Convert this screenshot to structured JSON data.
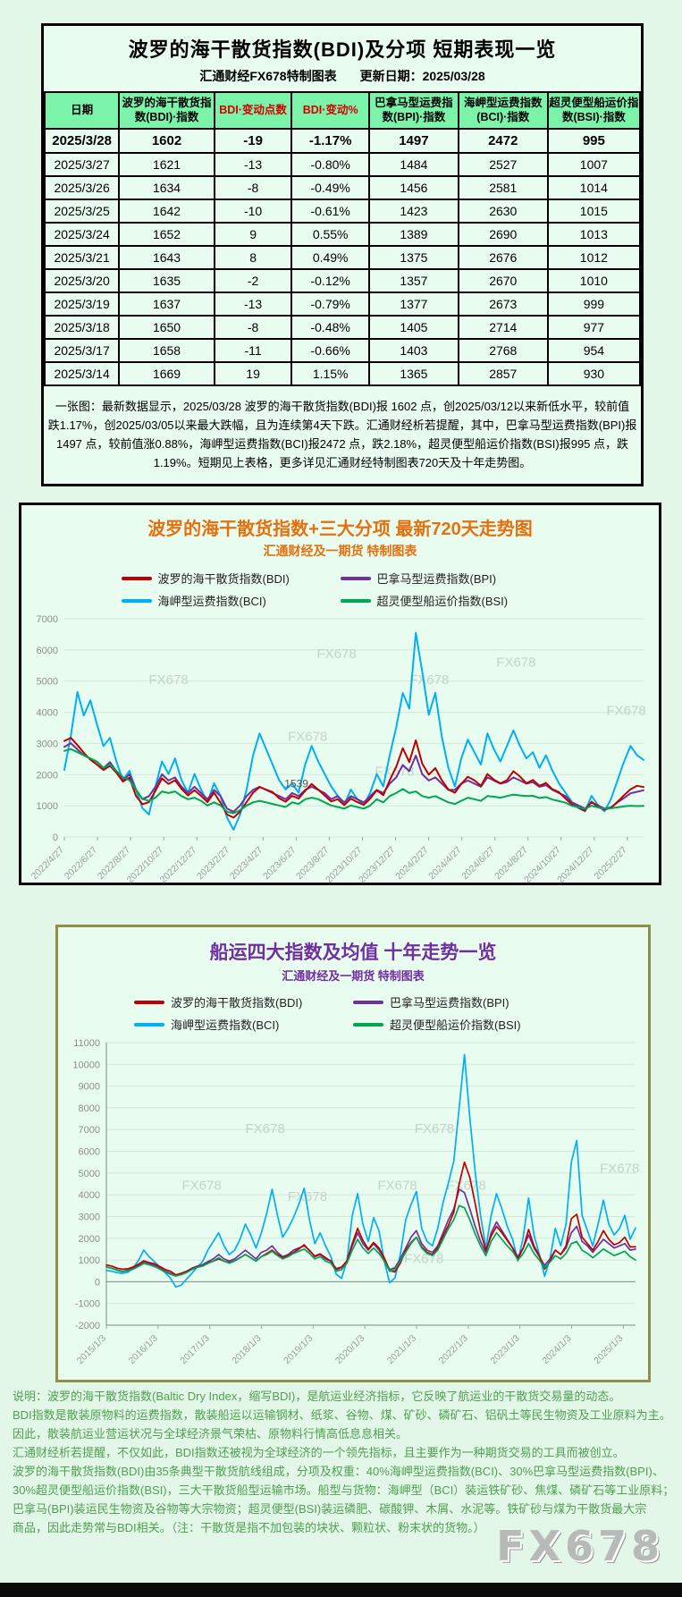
{
  "page": {
    "watermark": "FX678"
  },
  "table_panel": {
    "title": "波罗的海干散货指数(BDI)及分项 短期表现一览",
    "subtitle_left": "汇通财经FX678特制图表",
    "subtitle_right": "更新日期：2025/03/28",
    "headers": [
      "日期",
      "波罗的海干散货指数(BDI)·指数",
      "BDI·变动点数",
      "BDI·变动%",
      "巴拿马型运费指数(BPI)·指数",
      "海岬型运费指数(BCI)·指数",
      "超灵便型船运价指数(BSI)·指数"
    ],
    "rows": [
      [
        "2025/3/28",
        "1602",
        "-19",
        "-1.17%",
        "1497",
        "2472",
        "995"
      ],
      [
        "2025/3/27",
        "1621",
        "-13",
        "-0.80%",
        "1484",
        "2527",
        "1007"
      ],
      [
        "2025/3/26",
        "1634",
        "-8",
        "-0.49%",
        "1456",
        "2581",
        "1014"
      ],
      [
        "2025/3/25",
        "1642",
        "-10",
        "-0.61%",
        "1423",
        "2630",
        "1015"
      ],
      [
        "2025/3/24",
        "1652",
        "9",
        "0.55%",
        "1389",
        "2690",
        "1013"
      ],
      [
        "2025/3/21",
        "1643",
        "8",
        "0.49%",
        "1375",
        "2676",
        "1012"
      ],
      [
        "2025/3/20",
        "1635",
        "-2",
        "-0.12%",
        "1357",
        "2670",
        "1010"
      ],
      [
        "2025/3/19",
        "1637",
        "-13",
        "-0.79%",
        "1377",
        "2673",
        "999"
      ],
      [
        "2025/3/18",
        "1650",
        "-8",
        "-0.48%",
        "1405",
        "2714",
        "977"
      ],
      [
        "2025/3/17",
        "1658",
        "-11",
        "-0.66%",
        "1403",
        "2768",
        "954"
      ],
      [
        "2025/3/14",
        "1669",
        "19",
        "1.15%",
        "1365",
        "2857",
        "930"
      ]
    ],
    "note_lines": [
      "一张图：最新数据显示，2025/03/28 波罗的海干散货指数(BDI)报 1602 点，创2025/03/12以来新低水平，较前值",
      "跌1.17%，创2025/03/05以来最大跌幅，且为连续第4天下跌。汇通财经析若提醒，其中，巴拿马型运费指数(BPI)报",
      "1497 点，较前值涨0.88%，海岬型运费指数(BCI)报2472 点，跌2.18%，超灵便型船运价指数(BSI)报995 点，跌",
      "1.19%。短期见上表格，更多详见汇通财经特制图表720天及十年走势图。"
    ]
  },
  "explanation": {
    "lines": [
      "说明：波罗的海干散货指数(Baltic Dry Index，缩写BDI)，是航运业经济指标，它反映了航运业的干散货交易量的动态。",
      "BDI指数是散装原物料的运费指数，散装船运以运输钢材、纸浆、谷物、煤、矿砂、磷矿石、铝矾土等民生物资及工业原料为主。",
      "因此，散装航运业营运状况与全球经济景气荣枯、原物料行情高低息息相关。",
      "汇通财经析若提醒，不仅如此，BDI指数还被视为全球经济的一个领先指标，且主要作为一种期货交易的工具而被创立。",
      "波罗的海干散货指数(BDI)由35条典型干散货航线组成，分项及权重：40%海岬型运费指数(BCI)、30%巴拿马型运费指数(BPI)、",
      "30%超灵便型船运价指数(BSI)，三大干散货船型运输市场。船型与货物：海岬型（BCI）装运铁矿砂、焦煤、磷矿石等工业原料；",
      "巴拿马(BPI)装运民生物资及谷物等大宗物资；超灵便型(BSI)装运磷肥、碳酸钾、木屑、水泥等。铁矿砂与煤为干散货最大宗",
      "商品，因此走势常与BDI相关。（注：干散货是指不加包装的块状、颗粒状、粉末状的货物。）"
    ]
  },
  "chart_data": [
    {
      "type": "line",
      "title": "波罗的海干散货指数+三大分项 最新720天走势图",
      "subtitle": "汇通财经及一期货 特制图表",
      "ylim": [
        0,
        7000
      ],
      "ytick_step": 1000,
      "grid": "horizontal",
      "legend_position": "top",
      "x_span": 0.972,
      "x_labels": [
        "2022/4/27",
        "2022/6/27",
        "2022/8/27",
        "2022/10/27",
        "2022/12/27",
        "2023/2/27",
        "2023/4/27",
        "2023/6/27",
        "2023/8/27",
        "2023/10/27",
        "2023/12/27",
        "2024/2/27",
        "2024/4/27",
        "2024/6/27",
        "2024/8/27",
        "2024/10/27",
        "2024/12/27",
        "2025/2/27"
      ],
      "annotation": {
        "text": "1539",
        "fx": 0.38,
        "y": 1420
      },
      "watermark_positions": [
        [
          0.18,
          0.3
        ],
        [
          0.42,
          0.56
        ],
        [
          0.47,
          0.18
        ],
        [
          0.63,
          0.3
        ],
        [
          0.78,
          0.22
        ],
        [
          0.97,
          0.44
        ],
        [
          0.57,
          0.72
        ]
      ],
      "draw_order": [
        2,
        1,
        0,
        3
      ],
      "series": [
        {
          "name": "波罗的海干散货指数(BDI)",
          "color": "#c00000",
          "values": [
            3080,
            3180,
            2950,
            2700,
            2480,
            2320,
            2150,
            2280,
            2060,
            1780,
            1900,
            1320,
            1050,
            1120,
            1480,
            1880,
            1700,
            1820,
            1540,
            1330,
            1500,
            1320,
            1120,
            1420,
            1100,
            720,
            620,
            810,
            1120,
            1420,
            1600,
            1520,
            1440,
            1240,
            1130,
            1320,
            1230,
            1480,
            1700,
            1520,
            1330,
            1140,
            1210,
            1020,
            1230,
            1120,
            1030,
            1230,
            1500,
            1340,
            1820,
            2250,
            2850,
            2400,
            3100,
            2350,
            2000,
            2210,
            1820,
            1520,
            1420,
            1700,
            1930,
            1820,
            1640,
            2020,
            1840,
            1720,
            1820,
            2110,
            1940,
            1720,
            1830,
            1640,
            1730,
            1530,
            1440,
            1230,
            1040,
            940,
            840,
            1130,
            960,
            870,
            940,
            1130,
            1340,
            1530,
            1640,
            1602
          ]
        },
        {
          "name": "巴拿马型运费指数(BPI)",
          "color": "#7030a0",
          "values": [
            2890,
            3010,
            2810,
            2620,
            2510,
            2410,
            2210,
            2400,
            2110,
            1810,
            2010,
            1510,
            1210,
            1310,
            1610,
            2010,
            1810,
            1910,
            1610,
            1410,
            1610,
            1410,
            1210,
            1510,
            1310,
            910,
            810,
            1010,
            1310,
            1510,
            1610,
            1510,
            1410,
            1310,
            1210,
            1410,
            1310,
            1510,
            1610,
            1510,
            1410,
            1210,
            1310,
            1110,
            1310,
            1210,
            1110,
            1310,
            1510,
            1410,
            1710,
            1910,
            2310,
            2110,
            2610,
            2010,
            1810,
            1910,
            1710,
            1510,
            1510,
            1710,
            1810,
            1710,
            1610,
            1910,
            1810,
            1710,
            1760,
            1910,
            1810,
            1710,
            1760,
            1610,
            1660,
            1510,
            1410,
            1310,
            1110,
            1010,
            910,
            1110,
            1010,
            910,
            950,
            1110,
            1250,
            1400,
            1450,
            1497
          ]
        },
        {
          "name": "海岬型运费指数(BCI)",
          "color": "#00b0f0",
          "values": [
            2150,
            3250,
            4650,
            3900,
            4380,
            3620,
            2920,
            3180,
            2420,
            1820,
            2120,
            1520,
            920,
            720,
            1620,
            2420,
            2020,
            2520,
            1820,
            1420,
            2020,
            1520,
            1120,
            1720,
            1320,
            620,
            230,
            720,
            1520,
            2620,
            3320,
            2820,
            2320,
            1820,
            1520,
            1720,
            1420,
            2320,
            2920,
            2420,
            2020,
            1620,
            1320,
            1020,
            1520,
            1220,
            1020,
            1420,
            2020,
            1620,
            2620,
            3520,
            4620,
            4120,
            6550,
            5300,
            3920,
            4620,
            3220,
            2220,
            1620,
            2520,
            3120,
            2720,
            2320,
            3320,
            2820,
            2420,
            2920,
            3420,
            2920,
            2520,
            2720,
            2220,
            2620,
            2120,
            1720,
            1420,
            1120,
            920,
            820,
            1320,
            1020,
            820,
            1220,
            1820,
            2420,
            2920,
            2620,
            2472
          ]
        },
        {
          "name": "超灵便型船运价指数(BSI)",
          "color": "#00a651",
          "values": [
            2760,
            2820,
            2720,
            2620,
            2520,
            2420,
            2220,
            2320,
            2120,
            1920,
            1820,
            1520,
            1220,
            1160,
            1260,
            1460,
            1410,
            1460,
            1310,
            1210,
            1260,
            1160,
            1010,
            1110,
            1010,
            810,
            760,
            860,
            1010,
            1110,
            1160,
            1110,
            1060,
            1010,
            960,
            1110,
            1060,
            1210,
            1260,
            1210,
            1110,
            1010,
            960,
            910,
            1010,
            960,
            910,
            1010,
            1210,
            1110,
            1310,
            1410,
            1539,
            1410,
            1460,
            1310,
            1260,
            1310,
            1210,
            1110,
            1060,
            1160,
            1260,
            1210,
            1160,
            1310,
            1290,
            1260,
            1310,
            1360,
            1330,
            1310,
            1320,
            1250,
            1280,
            1200,
            1150,
            1100,
            1000,
            950,
            900,
            1000,
            950,
            900,
            920,
            950,
            980,
            1000,
            990,
            995
          ]
        }
      ]
    },
    {
      "type": "line",
      "title": "船运四大指数及均值 十年走势一览",
      "subtitle": "汇通财经及一期货 特制图表",
      "ylim": [
        -2000,
        11000
      ],
      "ytick_step": 1000,
      "grid": "horizontal",
      "legend_position": "top",
      "x_span": 0.977,
      "x_labels": [
        "2015/1/3",
        "2016/1/3",
        "2017/1/3",
        "2018/1/3",
        "2019/1/3",
        "2020/1/3",
        "2021/1/3",
        "2022/1/3",
        "2023/1/3",
        "2024/1/3",
        "2025/1/3"
      ],
      "watermark_positions": [
        [
          0.3,
          0.32
        ],
        [
          0.62,
          0.32
        ],
        [
          0.18,
          0.52
        ],
        [
          0.38,
          0.56
        ],
        [
          0.55,
          0.52
        ],
        [
          0.68,
          0.52
        ],
        [
          0.97,
          0.46
        ],
        [
          0.6,
          0.78
        ]
      ],
      "draw_order": [
        2,
        1,
        0,
        3
      ],
      "series": [
        {
          "name": "波罗的海干散货指数(BDI)",
          "color": "#c00000",
          "values": [
            770,
            720,
            620,
            580,
            590,
            680,
            800,
            960,
            880,
            820,
            700,
            560,
            480,
            310,
            380,
            470,
            600,
            680,
            720,
            870,
            940,
            1050,
            950,
            880,
            960,
            1100,
            1250,
            1100,
            950,
            1150,
            1300,
            1450,
            1250,
            1100,
            1200,
            1350,
            1500,
            1700,
            1420,
            1180,
            1280,
            1100,
            950,
            600,
            680,
            950,
            1750,
            2450,
            1900,
            1500,
            1800,
            1550,
            1100,
            500,
            450,
            850,
            1450,
            1800,
            2050,
            1600,
            1350,
            1250,
            1550,
            2100,
            2600,
            3200,
            4500,
            5500,
            4800,
            3600,
            2300,
            1450,
            2100,
            2550,
            2250,
            1900,
            1550,
            1050,
            1550,
            2400,
            1650,
            1200,
            580,
            950,
            1450,
            1250,
            1650,
            2900,
            3100,
            2050,
            1750,
            1450,
            1850,
            2350,
            1950,
            1700,
            1800,
            2050,
            1600,
            1602
          ]
        },
        {
          "name": "巴拿马型运费指数(BPI)",
          "color": "#7030a0",
          "values": [
            680,
            620,
            540,
            480,
            520,
            620,
            760,
            920,
            840,
            760,
            640,
            480,
            380,
            310,
            380,
            480,
            620,
            720,
            780,
            920,
            1050,
            1250,
            1050,
            950,
            1050,
            1250,
            1450,
            1250,
            1050,
            1350,
            1450,
            1650,
            1350,
            1150,
            1250,
            1450,
            1550,
            1650,
            1450,
            1150,
            1250,
            1050,
            950,
            550,
            650,
            950,
            1650,
            2250,
            1750,
            1450,
            1750,
            1450,
            1050,
            550,
            650,
            1050,
            1550,
            2050,
            2350,
            1750,
            1450,
            1350,
            1650,
            2250,
            2850,
            3350,
            4250,
            4100,
            3350,
            2550,
            1850,
            1350,
            2250,
            2750,
            2350,
            1950,
            1550,
            1150,
            1550,
            2150,
            1550,
            1150,
            750,
            1050,
            1450,
            1250,
            1550,
            2250,
            2550,
            1850,
            1650,
            1350,
            1650,
            1950,
            1750,
            1550,
            1650,
            1750,
            1450,
            1497
          ]
        },
        {
          "name": "海岬型运费指数(BCI)",
          "color": "#00b0f0",
          "values": [
            520,
            480,
            420,
            380,
            430,
            620,
            980,
            1450,
            1150,
            920,
            680,
            420,
            150,
            -240,
            -160,
            120,
            380,
            680,
            920,
            1450,
            1850,
            2250,
            1650,
            1250,
            1450,
            1950,
            2650,
            2150,
            1550,
            2250,
            3150,
            4250,
            3050,
            2050,
            2450,
            2950,
            3550,
            4300,
            2850,
            1750,
            2250,
            1650,
            1150,
            350,
            150,
            950,
            3050,
            4050,
            2650,
            1850,
            2950,
            2350,
            950,
            -50,
            180,
            1250,
            2850,
            3550,
            4150,
            2450,
            1850,
            1650,
            2450,
            3650,
            4550,
            5550,
            8000,
            10450,
            7550,
            5050,
            3050,
            1550,
            3050,
            4050,
            3350,
            2550,
            1950,
            950,
            2050,
            3850,
            2150,
            1250,
            250,
            1050,
            2450,
            1650,
            2650,
            5500,
            6500,
            3050,
            2350,
            1650,
            2650,
            3750,
            2650,
            2150,
            2450,
            3050,
            1950,
            2472
          ]
        },
        {
          "name": "超灵便型船运价指数(BSI)",
          "color": "#00a651",
          "values": [
            680,
            620,
            520,
            460,
            500,
            580,
            700,
            840,
            780,
            700,
            580,
            440,
            340,
            260,
            320,
            420,
            560,
            660,
            720,
            840,
            950,
            1100,
            950,
            850,
            950,
            1100,
            1250,
            1100,
            950,
            1150,
            1250,
            1400,
            1200,
            1050,
            1150,
            1300,
            1400,
            1500,
            1300,
            1050,
            1150,
            950,
            850,
            480,
            550,
            850,
            1450,
            1950,
            1550,
            1300,
            1550,
            1300,
            950,
            480,
            560,
            950,
            1350,
            1750,
            2050,
            1550,
            1300,
            1200,
            1450,
            1950,
            2450,
            2850,
            3500,
            3400,
            2850,
            2200,
            1650,
            1200,
            1850,
            2250,
            1950,
            1650,
            1400,
            1000,
            1300,
            1750,
            1300,
            1000,
            650,
            900,
            1200,
            1050,
            1300,
            1750,
            1850,
            1450,
            1300,
            1100,
            1300,
            1500,
            1350,
            1200,
            1300,
            1400,
            1150,
            995
          ]
        }
      ]
    }
  ]
}
